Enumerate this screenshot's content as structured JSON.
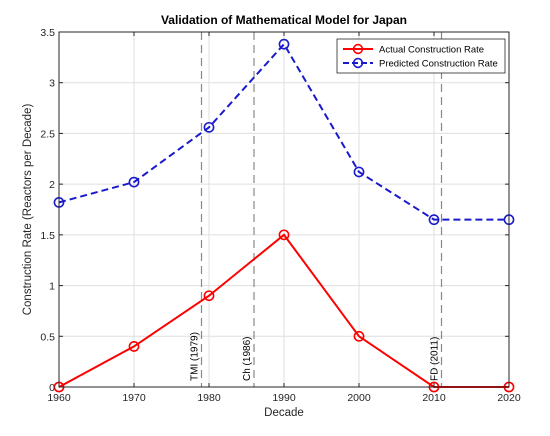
{
  "chart_data": {
    "type": "line",
    "title": "Validation of Mathematical Model for Japan",
    "xlabel": "Decade",
    "ylabel": "Construction Rate (Reactors per Decade)",
    "xlim": [
      1960,
      2020
    ],
    "ylim": [
      0,
      3.5
    ],
    "x_ticks": [
      "1960",
      "1970",
      "1980",
      "1990",
      "2000",
      "2010",
      "2020"
    ],
    "y_ticks": [
      "0",
      "0.5",
      "1",
      "1.5",
      "2",
      "2.5",
      "3",
      "3.5"
    ],
    "grid": true,
    "legend_position": "top-right",
    "x": [
      1960,
      1970,
      1980,
      1990,
      2000,
      2010,
      2020
    ],
    "series": [
      {
        "name": "Actual Construction Rate",
        "color": "#ff0000",
        "line_style": "solid",
        "marker": "circle",
        "values": [
          0,
          0.4,
          0.9,
          1.5,
          0.5,
          0,
          0
        ]
      },
      {
        "name": "Predicted Construction Rate",
        "color": "#1a1acd",
        "line_style": "dashed",
        "marker": "circle",
        "values": [
          1.82,
          2.02,
          2.56,
          3.38,
          2.12,
          1.65,
          1.65
        ]
      }
    ],
    "annotations": [
      {
        "x": 1979,
        "label": "TMI (1979)",
        "style": "dashed vertical line",
        "color": "#888888"
      },
      {
        "x": 1986,
        "label": "Ch (1986)",
        "style": "dashed vertical line",
        "color": "#888888"
      },
      {
        "x": 2011,
        "label": "FD (2011)",
        "style": "dashed vertical line",
        "color": "#888888"
      }
    ]
  }
}
